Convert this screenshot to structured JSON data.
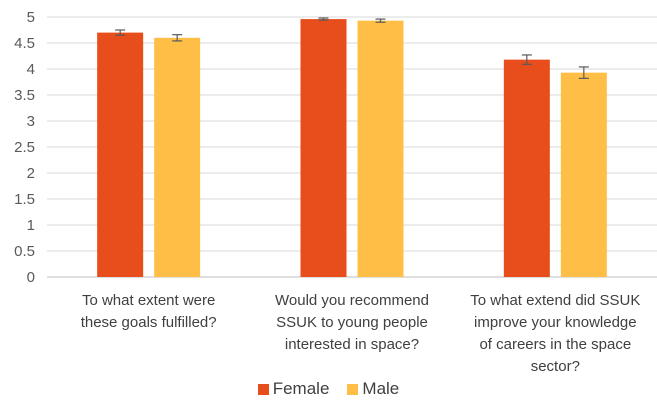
{
  "chart_data": {
    "type": "bar",
    "categories": [
      [
        "To what extent were",
        "these goals fulfilled?"
      ],
      [
        "Would you recommend",
        "SSUK to young people",
        "interested in space?"
      ],
      [
        "To what extend did SSUK",
        "improve your knowledge",
        "of careers in the space",
        "sector?"
      ]
    ],
    "series": [
      {
        "name": "Female",
        "color": "#E84E1B",
        "values": [
          4.7,
          4.96,
          4.18
        ],
        "errors": [
          0.05,
          0.02,
          0.09
        ]
      },
      {
        "name": "Male",
        "color": "#FFBF47",
        "values": [
          4.6,
          4.93,
          3.93
        ],
        "errors": [
          0.06,
          0.03,
          0.11
        ]
      }
    ],
    "ylim": [
      0,
      5
    ],
    "yticks": [
      "0",
      "0.5",
      "1",
      "1.5",
      "2",
      "2.5",
      "3",
      "3.5",
      "4",
      "4.5",
      "5"
    ],
    "grid": true,
    "legend_position": "bottom"
  }
}
